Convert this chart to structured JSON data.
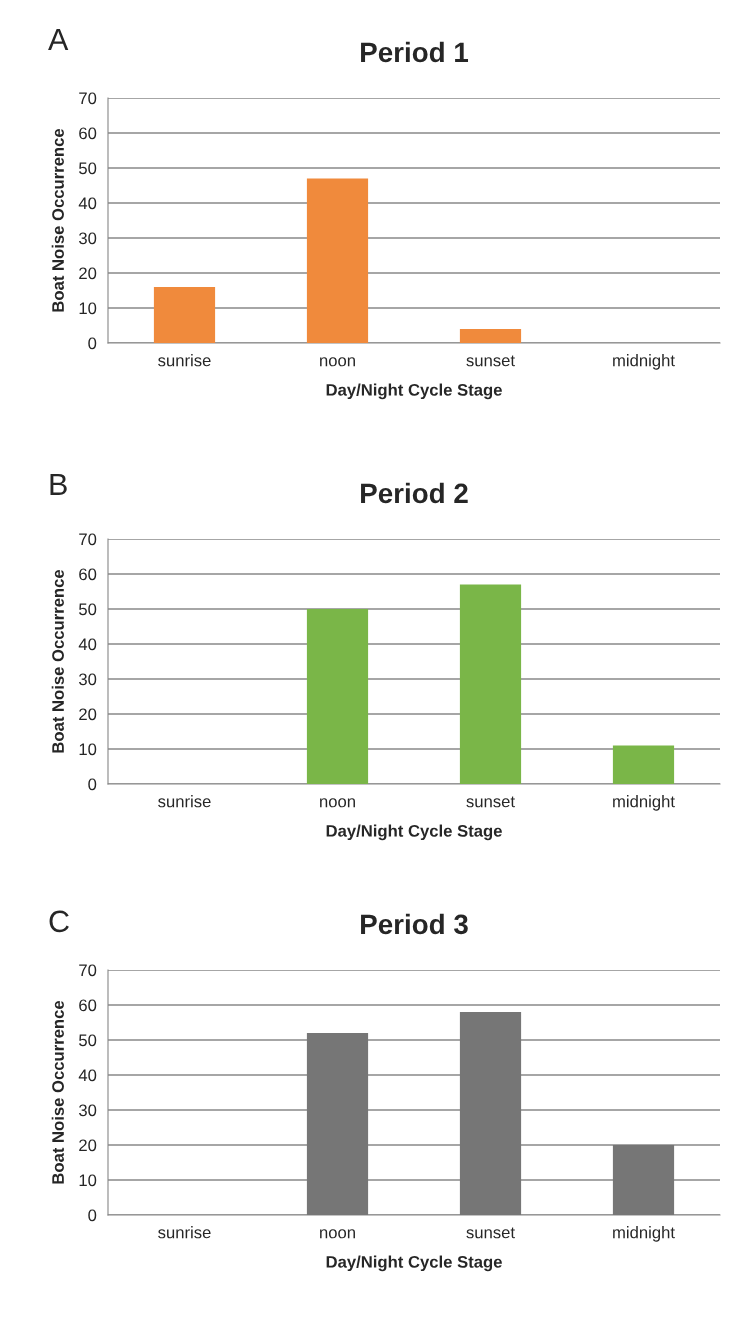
{
  "chart_data": [
    {
      "type": "bar",
      "title": "Period 1",
      "xlabel": "Day/Night Cycle Stage",
      "ylabel": "Boat Noise Occurrence",
      "annotations": [
        "A"
      ],
      "categories": [
        "sunrise",
        "noon",
        "sunset",
        "midnight"
      ],
      "values": [
        16,
        47,
        4,
        0
      ],
      "color": "#f08a3c",
      "ylim": [
        0,
        70
      ],
      "yticks": [
        0,
        10,
        20,
        30,
        40,
        50,
        60,
        70
      ],
      "grid": "y"
    },
    {
      "type": "bar",
      "title": "Period 2",
      "xlabel": "Day/Night Cycle Stage",
      "ylabel": "Boat Noise Occurrence",
      "annotations": [
        "B"
      ],
      "categories": [
        "sunrise",
        "noon",
        "sunset",
        "midnight"
      ],
      "values": [
        0,
        50,
        57,
        11
      ],
      "color": "#7ab648",
      "ylim": [
        0,
        70
      ],
      "yticks": [
        0,
        10,
        20,
        30,
        40,
        50,
        60,
        70
      ],
      "grid": "y"
    },
    {
      "type": "bar",
      "title": "Period 3",
      "xlabel": "Day/Night Cycle Stage",
      "ylabel": "Boat Noise Occurrence",
      "annotations": [
        "C"
      ],
      "categories": [
        "sunrise",
        "noon",
        "sunset",
        "midnight"
      ],
      "values": [
        0,
        52,
        58,
        20
      ],
      "color": "#767676",
      "ylim": [
        0,
        70
      ],
      "yticks": [
        0,
        10,
        20,
        30,
        40,
        50,
        60,
        70
      ],
      "grid": "y"
    }
  ]
}
